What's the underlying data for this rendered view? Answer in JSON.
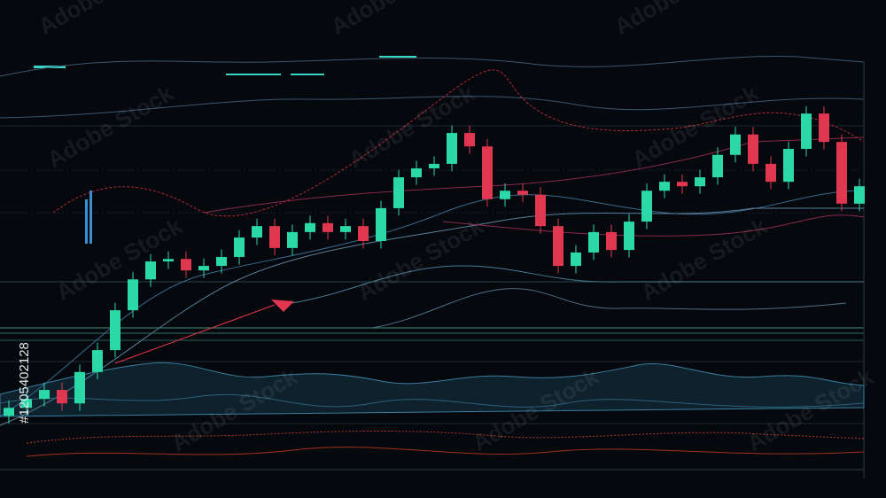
{
  "chart_data": {
    "type": "candlestick",
    "ylim": [
      0,
      100
    ],
    "up_color": "#2bd9a8",
    "down_color": "#e0364f",
    "open": [
      16.5,
      18.1,
      19.9,
      21.7,
      19.0,
      25.3,
      29.7,
      37.7,
      43.9,
      47.5,
      48.0,
      45.7,
      46.6,
      48.4,
      52.3,
      54.6,
      50.2,
      53.4,
      55.2,
      53.4,
      54.6,
      51.6,
      58.2,
      64.4,
      66.2,
      67.1,
      73.3,
      70.6,
      60.0,
      61.7,
      60.9,
      54.6,
      46.6,
      49.3,
      53.4,
      49.8,
      55.5,
      61.7,
      63.5,
      62.6,
      64.4,
      68.9,
      73.0,
      67.1,
      63.5,
      70.1,
      77.2,
      71.5,
      59.1
    ],
    "high": [
      19.6,
      21.4,
      23.2,
      23.2,
      26.8,
      31.2,
      39.2,
      45.4,
      49.0,
      49.5,
      49.5,
      48.1,
      49.9,
      53.8,
      56.1,
      56.1,
      54.9,
      56.7,
      56.7,
      56.1,
      56.1,
      59.7,
      65.9,
      67.7,
      68.6,
      74.8,
      74.8,
      72.1,
      63.2,
      63.2,
      62.4,
      56.1,
      50.8,
      54.9,
      54.9,
      57.0,
      63.2,
      65.0,
      65.0,
      65.9,
      70.4,
      74.5,
      74.5,
      68.6,
      71.6,
      78.7,
      78.7,
      73.0,
      64.1
    ],
    "low": [
      15.0,
      16.6,
      18.4,
      17.5,
      17.5,
      23.8,
      28.2,
      36.2,
      42.4,
      46.0,
      44.2,
      44.2,
      45.1,
      46.9,
      50.8,
      48.7,
      48.7,
      51.9,
      51.9,
      51.9,
      50.1,
      50.1,
      56.7,
      62.9,
      64.7,
      65.6,
      69.1,
      58.5,
      58.5,
      59.4,
      53.1,
      45.1,
      45.1,
      47.8,
      48.3,
      48.3,
      54.0,
      60.2,
      61.1,
      61.1,
      62.9,
      67.4,
      65.6,
      62.0,
      62.0,
      68.6,
      70.0,
      57.6,
      57.6
    ],
    "close": [
      18.1,
      19.9,
      21.7,
      19.0,
      25.3,
      29.7,
      37.7,
      43.9,
      47.5,
      48.0,
      45.7,
      46.6,
      48.4,
      52.3,
      54.6,
      50.2,
      53.4,
      55.2,
      53.4,
      54.6,
      51.6,
      58.2,
      64.4,
      66.2,
      67.1,
      73.3,
      70.6,
      60.0,
      61.7,
      60.9,
      54.6,
      46.6,
      49.3,
      53.4,
      49.8,
      55.5,
      61.7,
      63.5,
      62.6,
      64.4,
      68.9,
      73.0,
      67.1,
      63.5,
      70.1,
      77.2,
      71.5,
      59.1,
      62.6
    ]
  },
  "watermark": "Adobe Stock",
  "image_id": "#1205402128"
}
